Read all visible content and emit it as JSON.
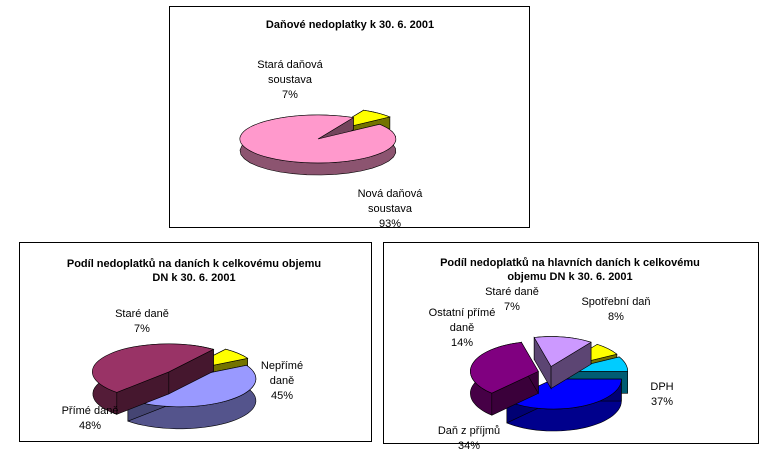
{
  "chart_data": [
    {
      "type": "pie",
      "title": [
        "Daňové nedoplatky k  30. 6. 2001"
      ],
      "slices": [
        {
          "name": "Stará daňová soustava",
          "label_lines": [
            "Stará daňová",
            "soustava"
          ],
          "value": 7,
          "value_label": "7%",
          "color": "#ffff00",
          "exploded": true
        },
        {
          "name": "Nová daňová soustava",
          "label_lines": [
            "Nová daňová",
            "soustava"
          ],
          "value": 93,
          "value_label": "93%",
          "color": "#ff99cc",
          "exploded": false
        }
      ]
    },
    {
      "type": "pie",
      "title": [
        "Podíl nedoplatků na daních k celkovému objemu",
        "DN k  30. 6. 2001"
      ],
      "slices": [
        {
          "name": "Staré daně",
          "label_lines": [
            "Staré daně"
          ],
          "value": 7,
          "value_label": "7%",
          "color": "#ffff00",
          "exploded": true
        },
        {
          "name": "Nepřímé daně",
          "label_lines": [
            "Nepřímé",
            "daně"
          ],
          "value": 45,
          "value_label": "45%",
          "color": "#9999ff",
          "exploded": true
        },
        {
          "name": "Přímé daně",
          "label_lines": [
            "Přímé daně"
          ],
          "value": 48,
          "value_label": "48%",
          "color": "#993366",
          "exploded": true
        }
      ]
    },
    {
      "type": "pie",
      "title": [
        "Podíl nedoplatků na hlavních daních k celkovému",
        "objemu DN k 30. 6. 2001"
      ],
      "slices": [
        {
          "name": "Staré daně",
          "label_lines": [
            "Staré daně"
          ],
          "value": 7,
          "value_label": "7%",
          "color": "#ffff00",
          "exploded": true
        },
        {
          "name": "Spotřební daň",
          "label_lines": [
            "Spotřební daň"
          ],
          "value": 8,
          "value_label": "8%",
          "color": "#00ccff",
          "exploded": true
        },
        {
          "name": "DPH",
          "label_lines": [
            "DPH"
          ],
          "value": 37,
          "value_label": "37%",
          "color": "#0000ff",
          "exploded": true
        },
        {
          "name": "Daň z příjmů",
          "label_lines": [
            "Daň z příjmů"
          ],
          "value": 34,
          "value_label": "34%",
          "color": "#800080",
          "exploded": true
        },
        {
          "name": "Ostatní přímé daně",
          "label_lines": [
            "Ostatní přímé",
            "daně"
          ],
          "value": 14,
          "value_label": "14%",
          "color": "#cc99ff",
          "exploded": true
        }
      ]
    }
  ]
}
